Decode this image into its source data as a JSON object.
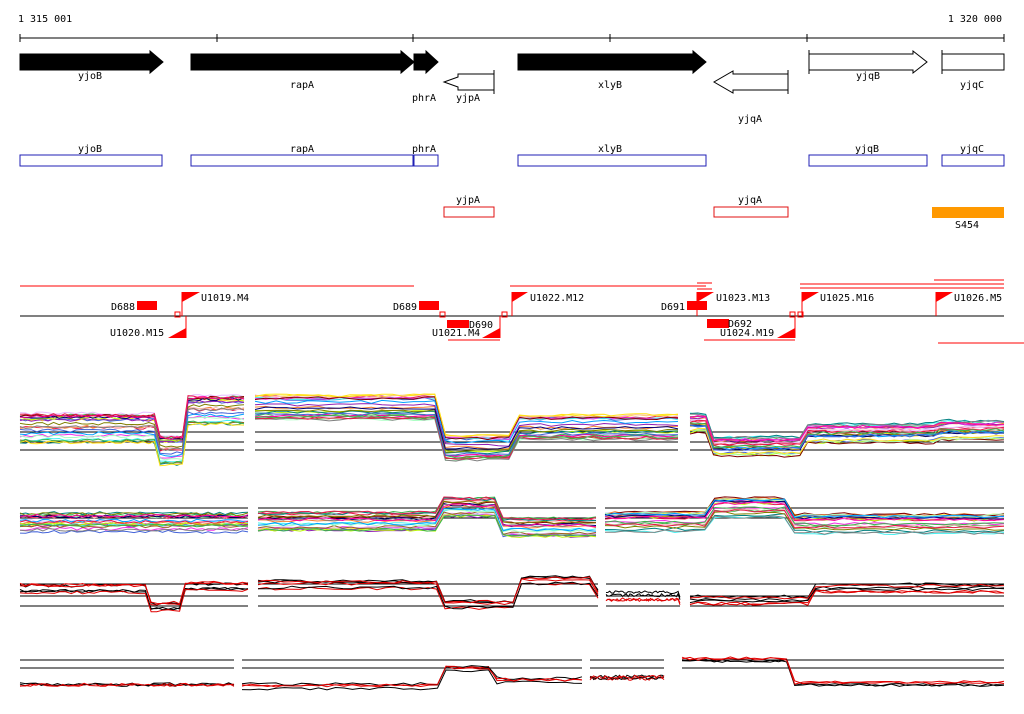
{
  "axis": {
    "start_label": "1 315 001",
    "end_label": "1 320 000"
  },
  "genes": [
    {
      "label": "yjoB",
      "strand": "+",
      "filled": true
    },
    {
      "label": "rapA",
      "strand": "+",
      "filled": true
    },
    {
      "label": "phrA",
      "strand": "+",
      "filled": true
    },
    {
      "label": "yjpA",
      "strand": "-",
      "filled": false
    },
    {
      "label": "xlyB",
      "strand": "+",
      "filled": true
    },
    {
      "label": "yjqA",
      "strand": "-",
      "filled": false
    },
    {
      "label": "yjqB",
      "strand": "+",
      "filled": false
    },
    {
      "label": "yjqC",
      "strand": "+",
      "filled": false
    }
  ],
  "plus_boxes": [
    "yjoB",
    "rapA",
    "phrA",
    "xlyB",
    "yjqB",
    "yjqC"
  ],
  "minus_boxes": [
    "yjpA",
    "yjqA"
  ],
  "signal": {
    "label": "S454",
    "color": "#ff9900"
  },
  "transcription_units": [
    "U1019.M4",
    "U1020.M15",
    "U1021.M4",
    "U1022.M12",
    "U1023.M13",
    "U1024.M19",
    "U1025.M16",
    "U1026.M5"
  ],
  "downshifts": [
    "D688",
    "D689",
    "D690",
    "D691",
    "D692"
  ],
  "colors": {
    "gene_fill": "#000000",
    "box_plus": "#1f1fb4",
    "box_minus": "#e01010",
    "feature_red": "#ff0000"
  }
}
